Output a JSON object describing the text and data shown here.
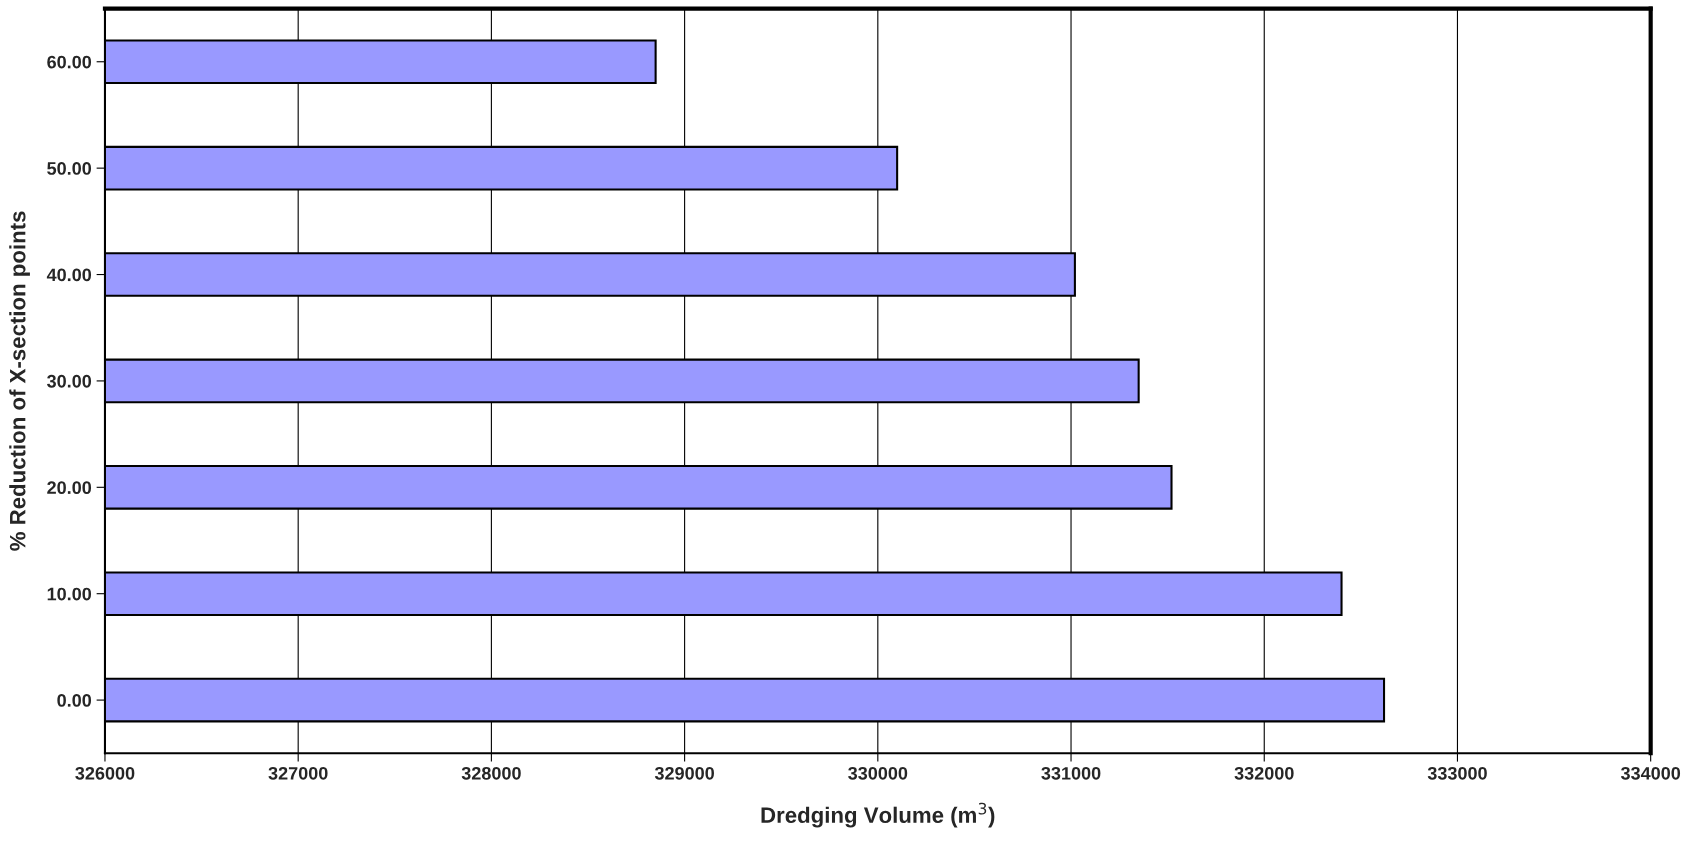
{
  "chart_data": {
    "type": "bar",
    "orientation": "horizontal",
    "xlabel": "Dredging Volume (m$^{3}$)",
    "ylabel": "% Reduction of X-section points",
    "categories": [
      "60.00",
      "50.00",
      "40.00",
      "30.00",
      "20.00",
      "10.00",
      "0.00"
    ],
    "series": [
      {
        "color": "#9999ff",
        "values": [
          328850,
          330100,
          331020,
          331350,
          331520,
          332400,
          332620
        ]
      }
    ],
    "xlim": [
      326000,
      334000
    ],
    "xticks": [
      326000,
      327000,
      328000,
      329000,
      330000,
      331000,
      332000,
      333000,
      334000
    ],
    "grid": "x",
    "legend": false
  }
}
